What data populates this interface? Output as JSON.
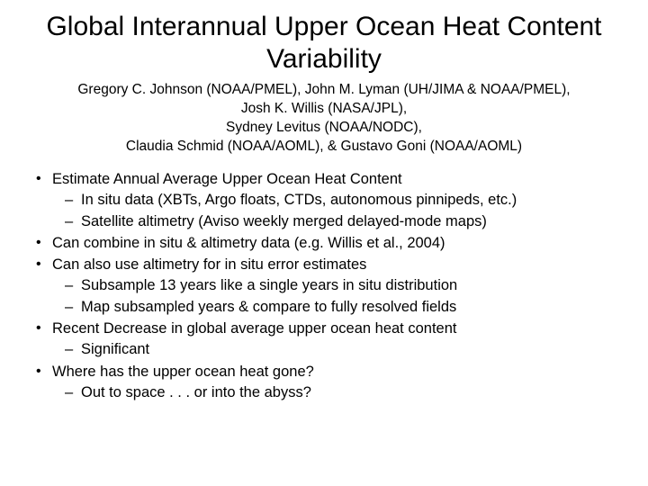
{
  "title": "Global Interannual Upper Ocean Heat Content Variability",
  "authors": {
    "line1": "Gregory C. Johnson (NOAA/PMEL),  John M. Lyman (UH/JIMA & NOAA/PMEL),",
    "line2": "Josh K. Willis (NASA/JPL),",
    "line3": "Sydney Levitus (NOAA/NODC),",
    "line4": "Claudia Schmid (NOAA/AOML), & Gustavo Goni (NOAA/AOML)"
  },
  "bullets": [
    {
      "text": "Estimate Annual Average Upper Ocean Heat Content",
      "sub": [
        "In situ data (XBTs, Argo floats, CTDs, autonomous pinnipeds, etc.)",
        "Satellite altimetry (Aviso weekly merged delayed-mode maps)"
      ]
    },
    {
      "text": "Can combine in situ & altimetry data (e.g. Willis et al., 2004)",
      "sub": []
    },
    {
      "text": "Can also use altimetry for in situ error estimates",
      "sub": [
        "Subsample 13 years like a single years in situ distribution",
        "Map subsampled years & compare to fully resolved fields"
      ]
    },
    {
      "text": "Recent Decrease in global average upper ocean heat content",
      "sub": [
        "Significant"
      ]
    },
    {
      "text": "Where has the upper ocean heat gone?",
      "sub": [
        "Out to space . . . or into the abyss?"
      ]
    }
  ],
  "styling": {
    "background_color": "#ffffff",
    "text_color": "#000000",
    "title_fontsize": 30,
    "authors_fontsize": 15.5,
    "body_fontsize": 16.5,
    "font_family": "Arial"
  }
}
